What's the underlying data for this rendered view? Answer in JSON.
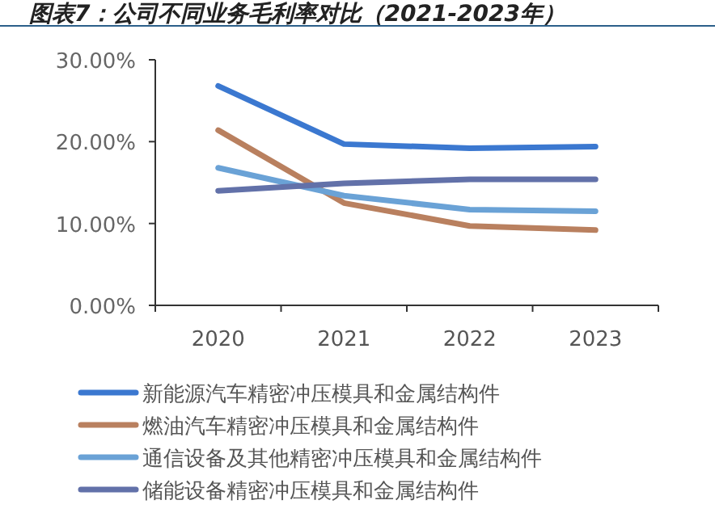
{
  "chart_data": {
    "type": "line",
    "title": "图表7：公司不同业务毛利率对比（2021-2023年）",
    "categories": [
      "2020",
      "2021",
      "2022",
      "2023"
    ],
    "ylim": [
      0,
      30
    ],
    "yticks": [
      {
        "value": 0,
        "label": "0.00%"
      },
      {
        "value": 10,
        "label": "10.00%"
      },
      {
        "value": 20,
        "label": "20.00%"
      },
      {
        "value": 30,
        "label": "30.00%"
      }
    ],
    "grid": false,
    "legend": "bottom",
    "marker": "none",
    "line_style": "solid",
    "series": [
      {
        "name": "新能源汽车精密冲压模具和金属结构件",
        "color": "#3b78d0",
        "values": [
          26.8,
          19.7,
          19.2,
          19.4
        ]
      },
      {
        "name": "燃油汽车精密冲压模具和金属结构件",
        "color": "#b9805f",
        "values": [
          21.4,
          12.5,
          9.7,
          9.2
        ]
      },
      {
        "name": "通信设备及其他精密冲压模具和金属结构件",
        "color": "#6aa2d6",
        "values": [
          16.8,
          13.4,
          11.7,
          11.5
        ]
      },
      {
        "name": "储能设备精密冲压模具和金属结构件",
        "color": "#6271a9",
        "values": [
          14.0,
          14.9,
          15.4,
          15.4
        ]
      }
    ]
  }
}
